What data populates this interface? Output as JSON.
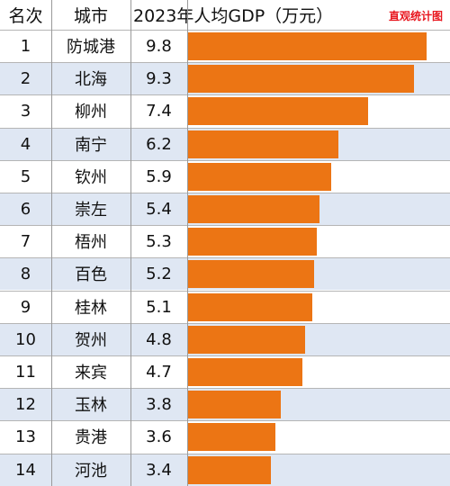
{
  "header": {
    "rank": "名次",
    "city": "城市",
    "value": "2023年人均GDP（万元）",
    "brand": "直观统计图"
  },
  "colors": {
    "bar": "#ec7514",
    "row_alt": "#dfe7f3",
    "brand": "#e8161e"
  },
  "chart_data": {
    "type": "bar",
    "title": "2023年人均GDP（万元）",
    "categories": [
      "防城港",
      "北海",
      "柳州",
      "南宁",
      "钦州",
      "崇左",
      "梧州",
      "百色",
      "桂林",
      "贺州",
      "来宾",
      "玉林",
      "贵港",
      "河池"
    ],
    "ranks": [
      "1",
      "2",
      "3",
      "4",
      "5",
      "6",
      "7",
      "8",
      "9",
      "10",
      "11",
      "12",
      "13",
      "14"
    ],
    "values": [
      9.8,
      9.3,
      7.4,
      6.2,
      5.9,
      5.4,
      5.3,
      5.2,
      5.1,
      4.8,
      4.7,
      3.8,
      3.6,
      3.4
    ],
    "value_labels": [
      "9.8",
      "9.3",
      "7.4",
      "6.2",
      "5.9",
      "5.4",
      "5.3",
      "5.2",
      "5.1",
      "4.8",
      "4.7",
      "3.8",
      "3.6",
      "3.4"
    ]
  }
}
